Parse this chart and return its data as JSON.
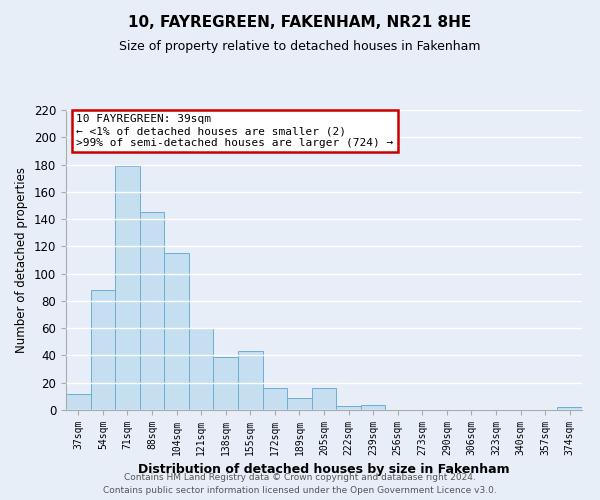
{
  "title": "10, FAYREGREEN, FAKENHAM, NR21 8HE",
  "subtitle": "Size of property relative to detached houses in Fakenham",
  "xlabel": "Distribution of detached houses by size in Fakenham",
  "ylabel": "Number of detached properties",
  "footnote1": "Contains HM Land Registry data © Crown copyright and database right 2024.",
  "footnote2": "Contains public sector information licensed under the Open Government Licence v3.0.",
  "bar_labels": [
    "37sqm",
    "54sqm",
    "71sqm",
    "88sqm",
    "104sqm",
    "121sqm",
    "138sqm",
    "155sqm",
    "172sqm",
    "189sqm",
    "205sqm",
    "222sqm",
    "239sqm",
    "256sqm",
    "273sqm",
    "290sqm",
    "306sqm",
    "323sqm",
    "340sqm",
    "357sqm",
    "374sqm"
  ],
  "bar_values": [
    12,
    88,
    179,
    145,
    115,
    60,
    39,
    43,
    16,
    9,
    16,
    3,
    4,
    0,
    0,
    0,
    0,
    0,
    0,
    0,
    2
  ],
  "bar_color": "#c5dff0",
  "bar_edge_color": "#6baed6",
  "annotation_line1": "10 FAYREGREEN: 39sqm",
  "annotation_line2": "← <1% of detached houses are smaller (2)",
  "annotation_line3": ">99% of semi-detached houses are larger (724) →",
  "annotation_box_edge_color": "#cc0000",
  "annotation_box_facecolor": "white",
  "ylim": [
    0,
    220
  ],
  "yticks": [
    0,
    20,
    40,
    60,
    80,
    100,
    120,
    140,
    160,
    180,
    200,
    220
  ],
  "background_color": "#e8eef8",
  "grid_color": "white",
  "title_fontsize": 11,
  "subtitle_fontsize": 9
}
